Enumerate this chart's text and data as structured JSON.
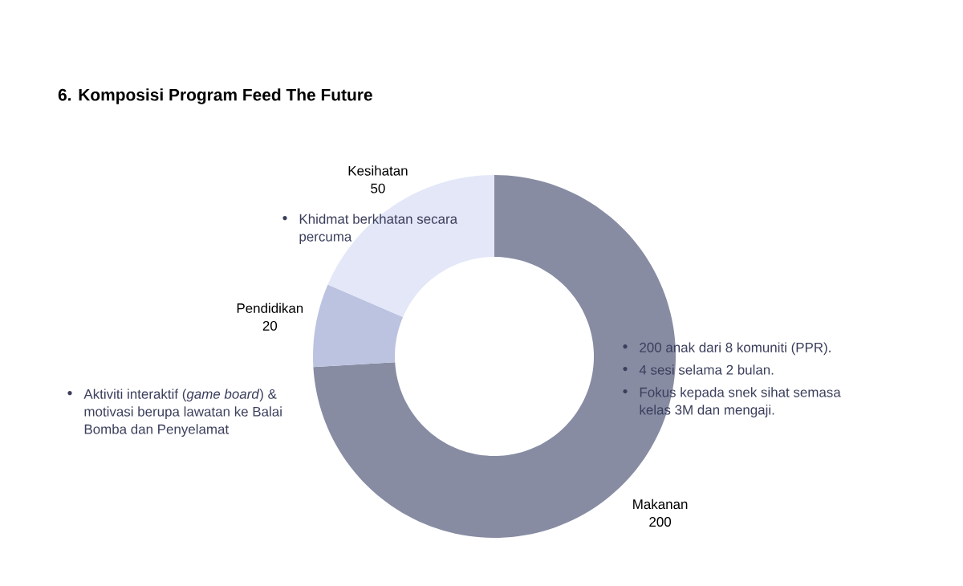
{
  "chart_data": {
    "type": "donut",
    "title": "6. Komposisi Program Feed The Future",
    "categories": [
      "Makanan",
      "Pendidikan",
      "Kesihatan"
    ],
    "values": [
      200,
      20,
      50
    ],
    "colors": [
      "#878ca3",
      "#bcc3e0",
      "#e3e7f8"
    ],
    "data_labels": true,
    "annotations": [
      "Khidmat berkhatan secara percuma",
      "Aktiviti interaktif (*game board*) & motivasi berupa lawatan ke Balai Bomba dan Penyelamat",
      "200 anak dari 8 komuniti (PPR).",
      "4 sesi selama 2 bulan.",
      "Fokus kepada snek sihat semasa kelas 3M dan mengaji."
    ]
  }
}
